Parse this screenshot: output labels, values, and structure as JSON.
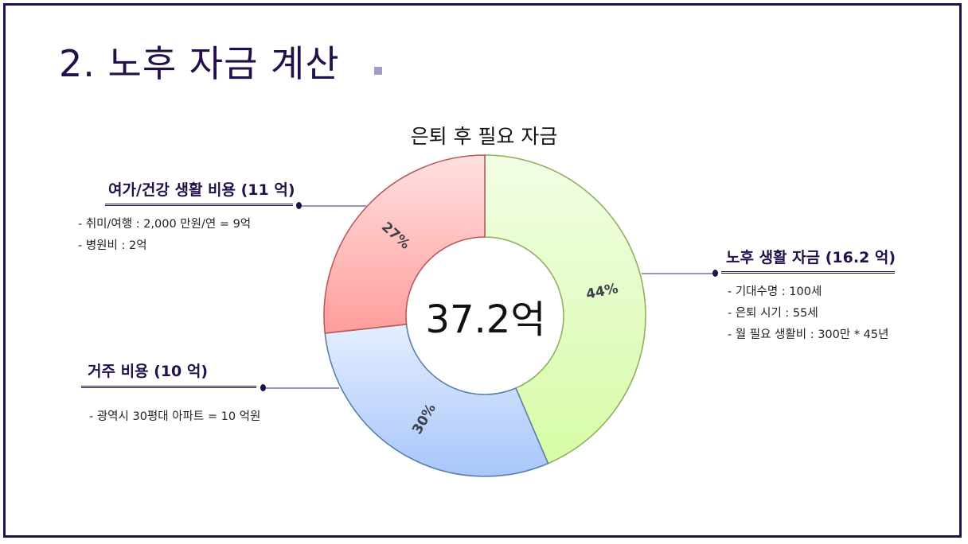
{
  "slide": {
    "title": "2. 노후 자금 계산"
  },
  "chart_data": {
    "type": "pie",
    "title": "은퇴 후 필요 자금",
    "center_label": "37.2억",
    "slices": [
      {
        "label": "44%",
        "value": 44,
        "color_light": "#f2fde5",
        "color_dark": "#d6fca6",
        "stroke": "#8fb060"
      },
      {
        "label": "30%",
        "value": 30,
        "color_light": "#e4eeff",
        "color_dark": "#a8c6fa",
        "stroke": "#5a7fac"
      },
      {
        "label": "27%",
        "value": 27,
        "color_light": "#ffe0e0",
        "color_dark": "#ff9d9b",
        "stroke": "#b95b59"
      }
    ]
  },
  "groups": {
    "leisure": {
      "heading": "여가/건강 생활 비용 (11 억)",
      "items": [
        "- 취미/여행 : 2,000 만원/연 = 9억",
        "-  병원비 : 2억"
      ]
    },
    "housing": {
      "heading": "거주 비용 (10 억)",
      "items": [
        "- 광역시 30평대 아파트 = 10 억원"
      ]
    },
    "living": {
      "heading": "노후 생활 자금 (16.2 억)",
      "items": [
        "- 기대수명 : 100세",
        "- 은퇴 시기 : 55세",
        "- 월 필요 생활비 : 300만 * 45년"
      ]
    }
  },
  "colors": {
    "title": "#23104a",
    "accent": "#a79bc4",
    "connector": "#9b96b5"
  }
}
